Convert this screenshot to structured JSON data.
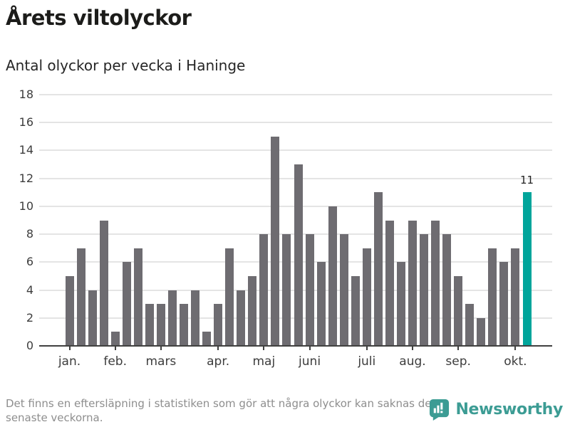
{
  "header": {
    "title": "Årets viltolyckor",
    "subtitle": "Antal olyckor per vecka i Haninge"
  },
  "chart_data": {
    "type": "bar",
    "title": "Årets viltolyckor",
    "subtitle": "Antal olyckor per vecka i Haninge",
    "ylabel": "",
    "xlabel": "",
    "ylim": [
      0,
      18
    ],
    "yticks": [
      0,
      2,
      4,
      6,
      8,
      10,
      12,
      14,
      16,
      18
    ],
    "grid": "horizontal",
    "values": [
      5,
      7,
      4,
      9,
      1,
      6,
      7,
      3,
      3,
      4,
      3,
      4,
      1,
      3,
      7,
      4,
      5,
      8,
      15,
      8,
      13,
      8,
      6,
      10,
      8,
      5,
      7,
      11,
      9,
      6,
      9,
      8,
      9,
      8,
      5,
      3,
      2,
      7,
      6,
      7,
      11
    ],
    "highlight_index": 40,
    "highlight_value_label": "11",
    "month_ticks": [
      {
        "label": "jan.",
        "bar_index": 0
      },
      {
        "label": "feb.",
        "bar_index": 4
      },
      {
        "label": "mars",
        "bar_index": 8
      },
      {
        "label": "apr.",
        "bar_index": 13
      },
      {
        "label": "maj",
        "bar_index": 17
      },
      {
        "label": "juni",
        "bar_index": 21
      },
      {
        "label": "juli",
        "bar_index": 26
      },
      {
        "label": "aug.",
        "bar_index": 30
      },
      {
        "label": "sep.",
        "bar_index": 34
      },
      {
        "label": "okt.",
        "bar_index": 39
      }
    ],
    "colors": {
      "bar": "#6e6c71",
      "highlight": "#00a59b",
      "gridline": "#e4e4e4",
      "axis": "#404040"
    }
  },
  "footer": {
    "note": "Det finns en eftersläpning i statistiken som gör att några olyckor kan saknas de senaste veckorna.",
    "brand": "Newsworthy",
    "brand_color": "#3c9c94"
  }
}
